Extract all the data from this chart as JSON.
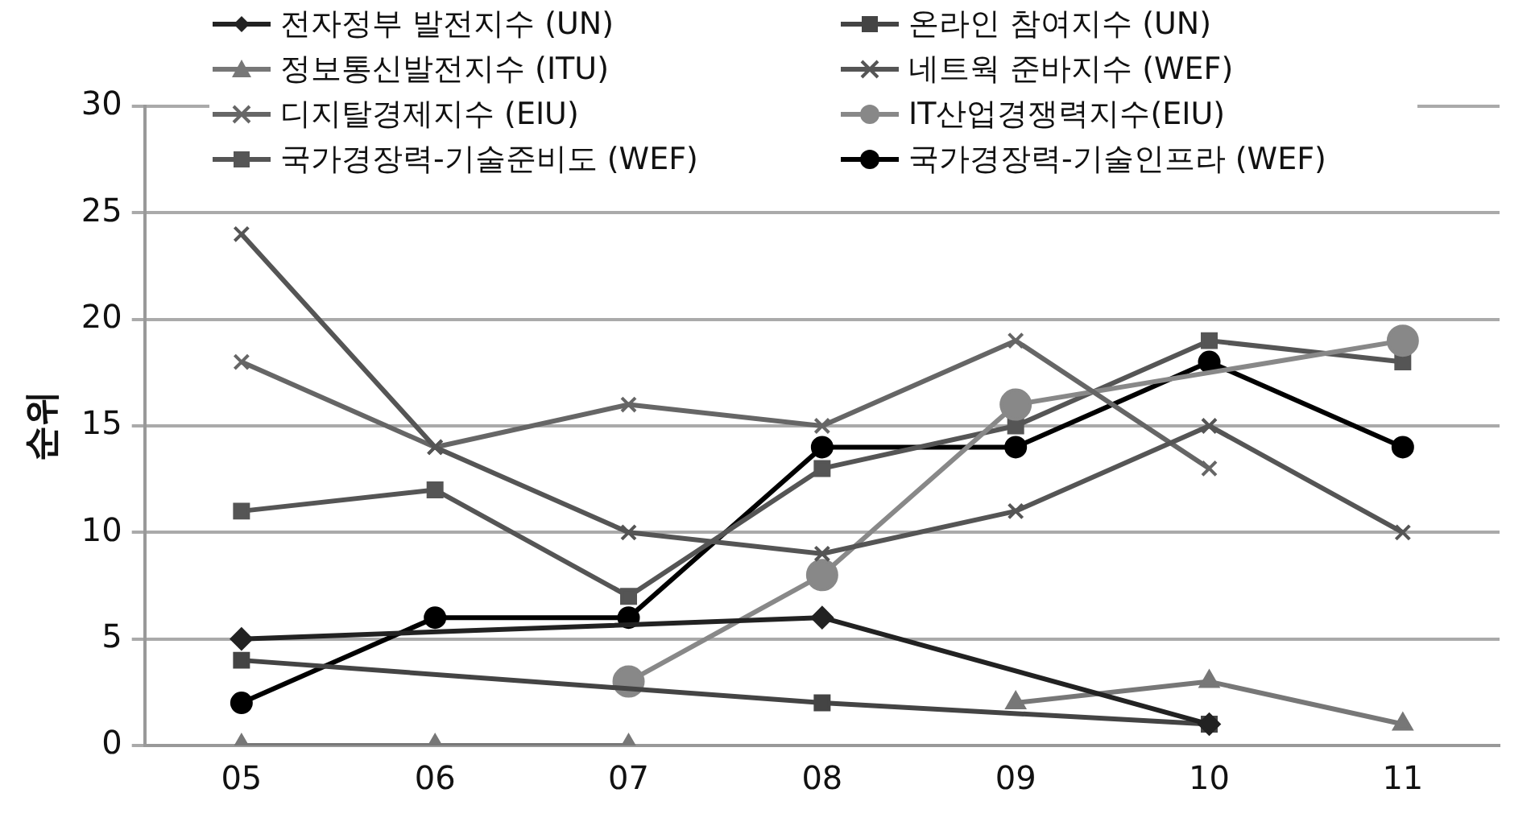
{
  "chart_data": {
    "type": "line",
    "ylabel": "순위",
    "categories": [
      "05",
      "06",
      "07",
      "08",
      "09",
      "10",
      "11"
    ],
    "ylim": [
      0,
      30
    ],
    "yticks": [
      0,
      5,
      10,
      15,
      20,
      25,
      30
    ],
    "grid": "y",
    "legend": "top",
    "line_style": "solid",
    "series": [
      {
        "name": "전자정부 발전지수 (UN)",
        "color": "#222222",
        "marker": "diamond",
        "x": [
          "05",
          "08",
          "10"
        ],
        "values": [
          5,
          6,
          1
        ]
      },
      {
        "name": "온라인 참여지수 (UN)",
        "color": "#444444",
        "marker": "square",
        "x": [
          "05",
          "08",
          "10"
        ],
        "values": [
          4,
          2,
          1
        ]
      },
      {
        "name": "정보통신발전지수 (ITU)",
        "color": "#777777",
        "marker": "triangle",
        "values": [
          0,
          0,
          0,
          null,
          2,
          3,
          1
        ]
      },
      {
        "name": "네트웍 준바지수 (WEF)",
        "color": "#555555",
        "marker": "cross",
        "values": [
          24,
          14,
          10,
          9,
          11,
          15,
          10
        ]
      },
      {
        "name": "디지탈경제지수 (EIU)",
        "color": "#666666",
        "marker": "cross",
        "values": [
          18,
          14,
          16,
          15,
          19,
          13,
          null
        ]
      },
      {
        "name": "IT산업경쟁력지수(EIU)",
        "color": "#888888",
        "marker": "circle",
        "x": [
          "07",
          "08",
          "09",
          "11"
        ],
        "values": [
          3,
          8,
          16,
          19
        ]
      },
      {
        "name": "국가경장력-기술준비도 (WEF)",
        "color": "#555555",
        "marker": "square",
        "values": [
          11,
          12,
          7,
          13,
          15,
          19,
          18
        ]
      },
      {
        "name": "국가경장력-기술인프라 (WEF)",
        "color": "#000000",
        "marker": "circle",
        "values": [
          2,
          6,
          6,
          14,
          14,
          18,
          14
        ]
      }
    ]
  }
}
